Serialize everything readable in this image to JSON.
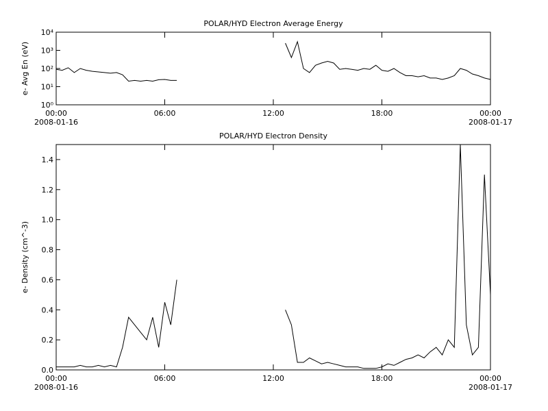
{
  "chart_data": [
    {
      "type": "line",
      "title": "POLAR/HYD  Electron Average Energy",
      "ylabel": "e- Avg En (eV)",
      "log_y": true,
      "color": "#000000",
      "xlim": [
        "2008-01-16T00:00",
        "2008-01-17T00:00"
      ],
      "xticks": [
        {
          "value": "2008-01-16T00:00",
          "label": "00:00\n2008-01-16"
        },
        {
          "value": "2008-01-16T06:00",
          "label": "06:00"
        },
        {
          "value": "2008-01-16T12:00",
          "label": "12:00"
        },
        {
          "value": "2008-01-16T18:00",
          "label": "18:00"
        },
        {
          "value": "2008-01-17T00:00",
          "label": "00:00\n2008-01-17"
        }
      ],
      "ylim": [
        1,
        10000
      ],
      "yticks": [
        {
          "value": 1,
          "label": "10⁰"
        },
        {
          "value": 10,
          "label": "10¹"
        },
        {
          "value": 100,
          "label": "10²"
        },
        {
          "value": 1000,
          "label": "10³"
        },
        {
          "value": 10000,
          "label": "10⁴"
        }
      ],
      "x": [
        "2008-01-16T00:00",
        "2008-01-16T00:20",
        "2008-01-16T00:40",
        "2008-01-16T01:00",
        "2008-01-16T01:20",
        "2008-01-16T01:40",
        "2008-01-16T02:00",
        "2008-01-16T02:20",
        "2008-01-16T02:40",
        "2008-01-16T03:00",
        "2008-01-16T03:20",
        "2008-01-16T03:40",
        "2008-01-16T04:00",
        "2008-01-16T04:20",
        "2008-01-16T04:40",
        "2008-01-16T05:00",
        "2008-01-16T05:20",
        "2008-01-16T05:40",
        "2008-01-16T06:00",
        "2008-01-16T06:20",
        "2008-01-16T06:40",
        "2008-01-16T07:00",
        "2008-01-16T07:20",
        "2008-01-16T07:40",
        "2008-01-16T08:00",
        "2008-01-16T08:20",
        "2008-01-16T08:40",
        "2008-01-16T09:00",
        "2008-01-16T09:20",
        "2008-01-16T09:40",
        "2008-01-16T10:00",
        "2008-01-16T10:20",
        "2008-01-16T10:40",
        "2008-01-16T11:00",
        "2008-01-16T11:20",
        "2008-01-16T11:40",
        "2008-01-16T12:00",
        "2008-01-16T12:20",
        "2008-01-16T12:40",
        "2008-01-16T13:00",
        "2008-01-16T13:20",
        "2008-01-16T13:40",
        "2008-01-16T14:00",
        "2008-01-16T14:20",
        "2008-01-16T14:40",
        "2008-01-16T15:00",
        "2008-01-16T15:20",
        "2008-01-16T15:40",
        "2008-01-16T16:00",
        "2008-01-16T16:20",
        "2008-01-16T16:40",
        "2008-01-16T17:00",
        "2008-01-16T17:20",
        "2008-01-16T17:40",
        "2008-01-16T18:00",
        "2008-01-16T18:20",
        "2008-01-16T18:40",
        "2008-01-16T19:00",
        "2008-01-16T19:20",
        "2008-01-16T19:40",
        "2008-01-16T20:00",
        "2008-01-16T20:20",
        "2008-01-16T20:40",
        "2008-01-16T21:00",
        "2008-01-16T21:20",
        "2008-01-16T21:40",
        "2008-01-16T22:00",
        "2008-01-16T22:20",
        "2008-01-16T22:40",
        "2008-01-16T23:00",
        "2008-01-16T23:20",
        "2008-01-16T23:40",
        "2008-01-17T00:00"
      ],
      "values": [
        90,
        80,
        110,
        60,
        100,
        80,
        70,
        65,
        60,
        55,
        60,
        45,
        20,
        22,
        20,
        22,
        20,
        24,
        25,
        22,
        22,
        null,
        null,
        null,
        null,
        null,
        null,
        null,
        null,
        null,
        null,
        null,
        null,
        null,
        null,
        null,
        null,
        null,
        2500,
        400,
        3000,
        100,
        60,
        150,
        200,
        250,
        200,
        90,
        100,
        90,
        80,
        100,
        90,
        150,
        80,
        70,
        100,
        60,
        40,
        40,
        35,
        40,
        30,
        30,
        25,
        30,
        40,
        100,
        80,
        50,
        40,
        30,
        25
      ]
    },
    {
      "type": "line",
      "title": "POLAR/HYD  Electron Density",
      "ylabel": "e- Density (cm^-3)",
      "log_y": false,
      "color": "#000000",
      "xlim": [
        "2008-01-16T00:00",
        "2008-01-17T00:00"
      ],
      "xticks": [
        {
          "value": "2008-01-16T00:00",
          "label": "00:00\n2008-01-16"
        },
        {
          "value": "2008-01-16T06:00",
          "label": "06:00"
        },
        {
          "value": "2008-01-16T12:00",
          "label": "12:00"
        },
        {
          "value": "2008-01-16T18:00",
          "label": "18:00"
        },
        {
          "value": "2008-01-17T00:00",
          "label": "00:00\n2008-01-17"
        }
      ],
      "ylim": [
        0,
        1.5
      ],
      "yticks": [
        {
          "value": 0,
          "label": "0.0"
        },
        0.2,
        0.4,
        0.6,
        0.8,
        {
          "value": 1,
          "label": "1.0"
        },
        1.2,
        1.4
      ],
      "x": [
        "2008-01-16T00:00",
        "2008-01-16T00:20",
        "2008-01-16T00:40",
        "2008-01-16T01:00",
        "2008-01-16T01:20",
        "2008-01-16T01:40",
        "2008-01-16T02:00",
        "2008-01-16T02:20",
        "2008-01-16T02:40",
        "2008-01-16T03:00",
        "2008-01-16T03:20",
        "2008-01-16T03:40",
        "2008-01-16T04:00",
        "2008-01-16T04:20",
        "2008-01-16T04:40",
        "2008-01-16T05:00",
        "2008-01-16T05:20",
        "2008-01-16T05:40",
        "2008-01-16T06:00",
        "2008-01-16T06:20",
        "2008-01-16T06:40",
        "2008-01-16T07:00",
        "2008-01-16T07:20",
        "2008-01-16T07:40",
        "2008-01-16T08:00",
        "2008-01-16T08:20",
        "2008-01-16T08:40",
        "2008-01-16T09:00",
        "2008-01-16T09:20",
        "2008-01-16T09:40",
        "2008-01-16T10:00",
        "2008-01-16T10:20",
        "2008-01-16T10:40",
        "2008-01-16T11:00",
        "2008-01-16T11:20",
        "2008-01-16T11:40",
        "2008-01-16T12:00",
        "2008-01-16T12:20",
        "2008-01-16T12:40",
        "2008-01-16T13:00",
        "2008-01-16T13:20",
        "2008-01-16T13:40",
        "2008-01-16T14:00",
        "2008-01-16T14:20",
        "2008-01-16T14:40",
        "2008-01-16T15:00",
        "2008-01-16T15:20",
        "2008-01-16T15:40",
        "2008-01-16T16:00",
        "2008-01-16T16:20",
        "2008-01-16T16:40",
        "2008-01-16T17:00",
        "2008-01-16T17:20",
        "2008-01-16T17:40",
        "2008-01-16T18:00",
        "2008-01-16T18:20",
        "2008-01-16T18:40",
        "2008-01-16T19:00",
        "2008-01-16T19:20",
        "2008-01-16T19:40",
        "2008-01-16T20:00",
        "2008-01-16T20:20",
        "2008-01-16T20:40",
        "2008-01-16T21:00",
        "2008-01-16T21:20",
        "2008-01-16T21:40",
        "2008-01-16T22:00",
        "2008-01-16T22:20",
        "2008-01-16T22:40",
        "2008-01-16T23:00",
        "2008-01-16T23:20",
        "2008-01-16T23:40",
        "2008-01-17T00:00"
      ],
      "values": [
        0.02,
        0.02,
        0.02,
        0.02,
        0.03,
        0.02,
        0.02,
        0.03,
        0.02,
        0.03,
        0.02,
        0.15,
        0.35,
        0.3,
        0.25,
        0.2,
        0.35,
        0.15,
        0.45,
        0.3,
        0.6,
        null,
        null,
        null,
        null,
        null,
        null,
        null,
        null,
        null,
        null,
        null,
        null,
        null,
        null,
        null,
        null,
        null,
        0.4,
        0.3,
        0.05,
        0.05,
        0.08,
        0.06,
        0.04,
        0.05,
        0.04,
        0.03,
        0.02,
        0.02,
        0.02,
        0.01,
        0.01,
        0.01,
        0.02,
        0.04,
        0.03,
        0.05,
        0.07,
        0.08,
        0.1,
        0.08,
        0.12,
        0.15,
        0.1,
        0.2,
        0.15,
        1.5,
        0.3,
        0.1,
        0.15,
        1.3,
        0.5
      ]
    }
  ]
}
